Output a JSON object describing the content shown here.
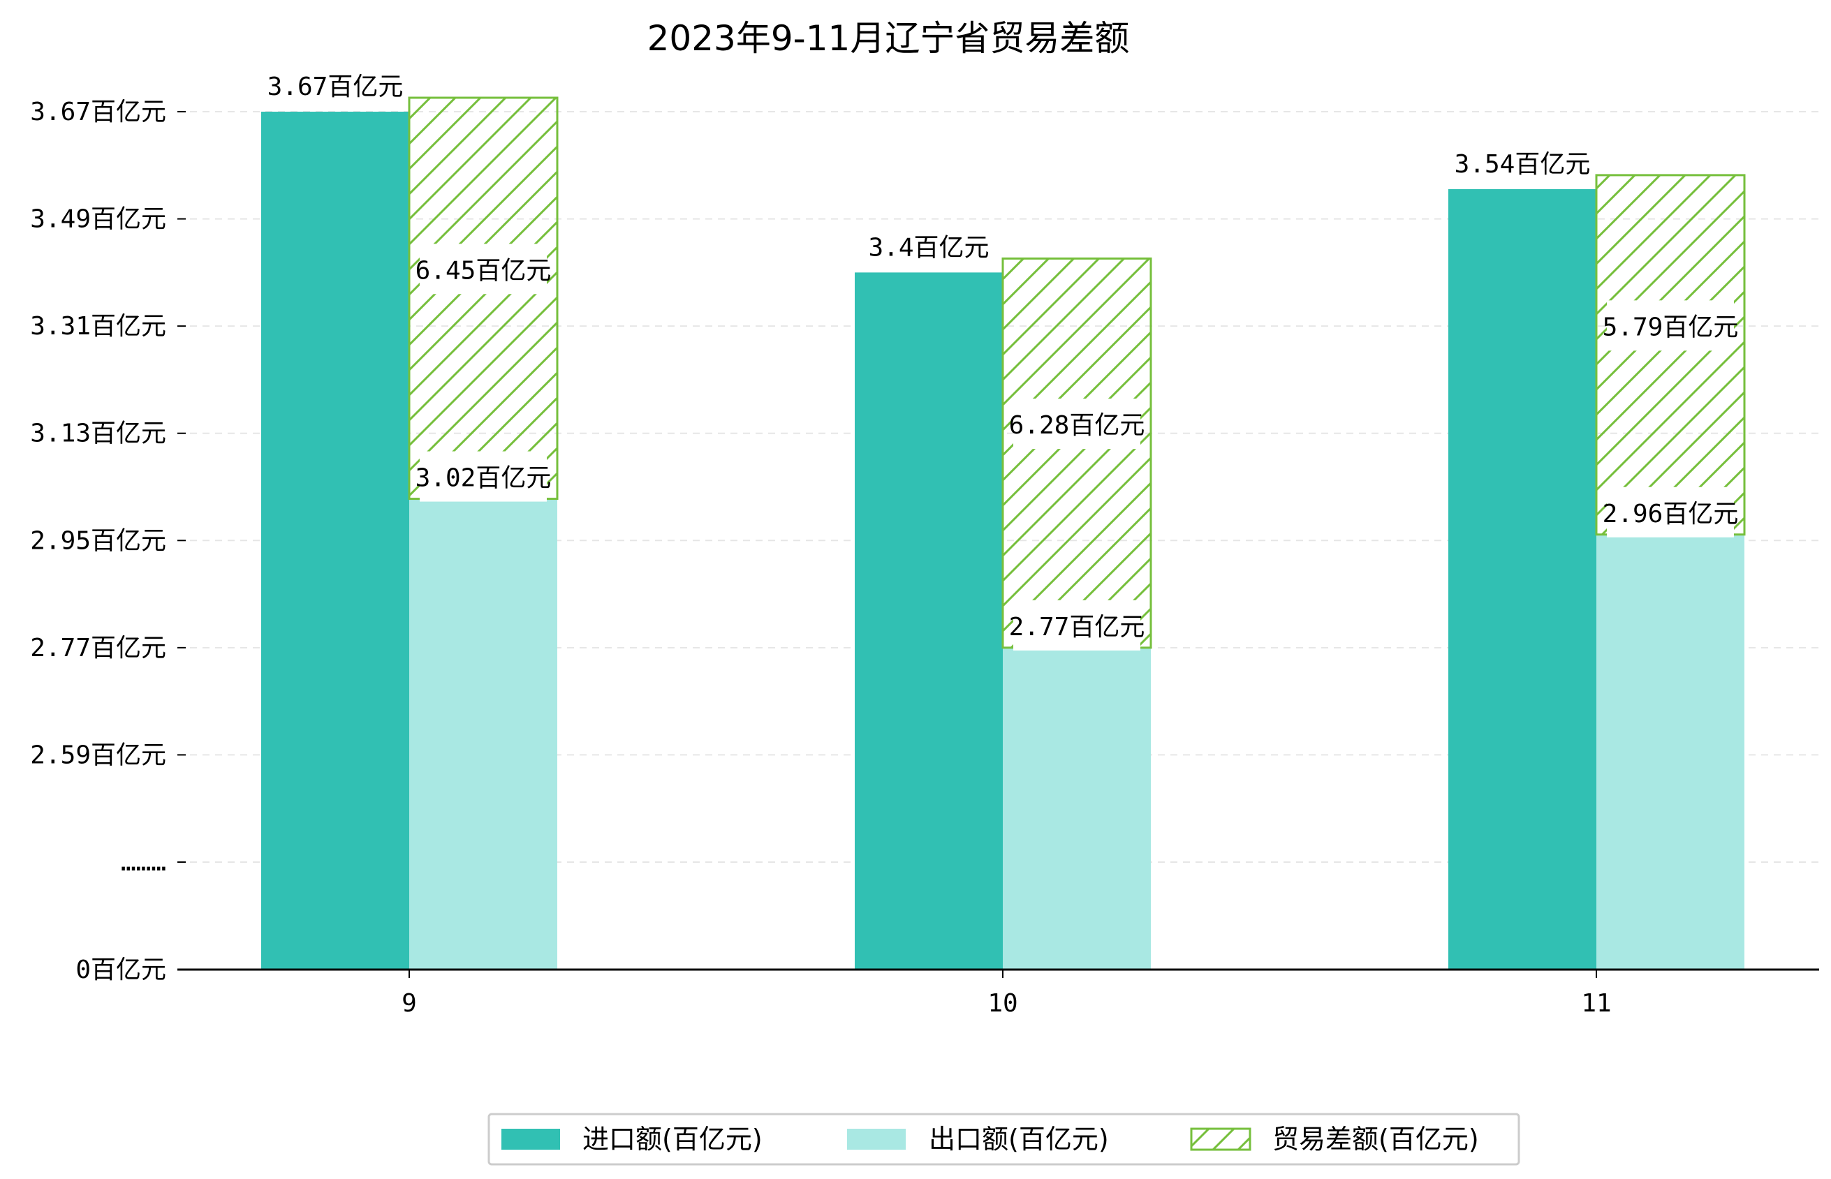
{
  "chart_data": {
    "type": "bar",
    "title": "2023年9-11月辽宁省贸易差额",
    "xlabel": "",
    "ylabel": "",
    "categories": [
      "9",
      "10",
      "11"
    ],
    "y_ticks": [
      "0百亿元",
      "………",
      "2.59百亿元",
      "2.77百亿元",
      "2.95百亿元",
      "3.13百亿元",
      "3.31百亿元",
      "3.49百亿元",
      "3.67百亿元"
    ],
    "series": [
      {
        "name": "进口额(百亿元)",
        "values": [
          3.67,
          3.4,
          3.54
        ],
        "labels": [
          "3.67百亿元",
          "3.4百亿元",
          "3.54百亿元"
        ],
        "color": "#31c0b3"
      },
      {
        "name": "出口额(百亿元)",
        "values": [
          3.02,
          2.77,
          2.96
        ],
        "labels": [
          "3.02百亿元",
          "2.77百亿元",
          "2.96百亿元"
        ],
        "color": "#a9e8e3"
      },
      {
        "name": "贸易差额(百亿元)",
        "values": [
          6.45,
          6.28,
          5.79
        ],
        "labels": [
          "6.45百亿元",
          "6.28百亿元",
          "5.79百亿元"
        ],
        "color": "#76bf3c",
        "pattern": "hatch"
      }
    ],
    "grid": "horizontal-dashed",
    "legend": "bottom-center"
  }
}
